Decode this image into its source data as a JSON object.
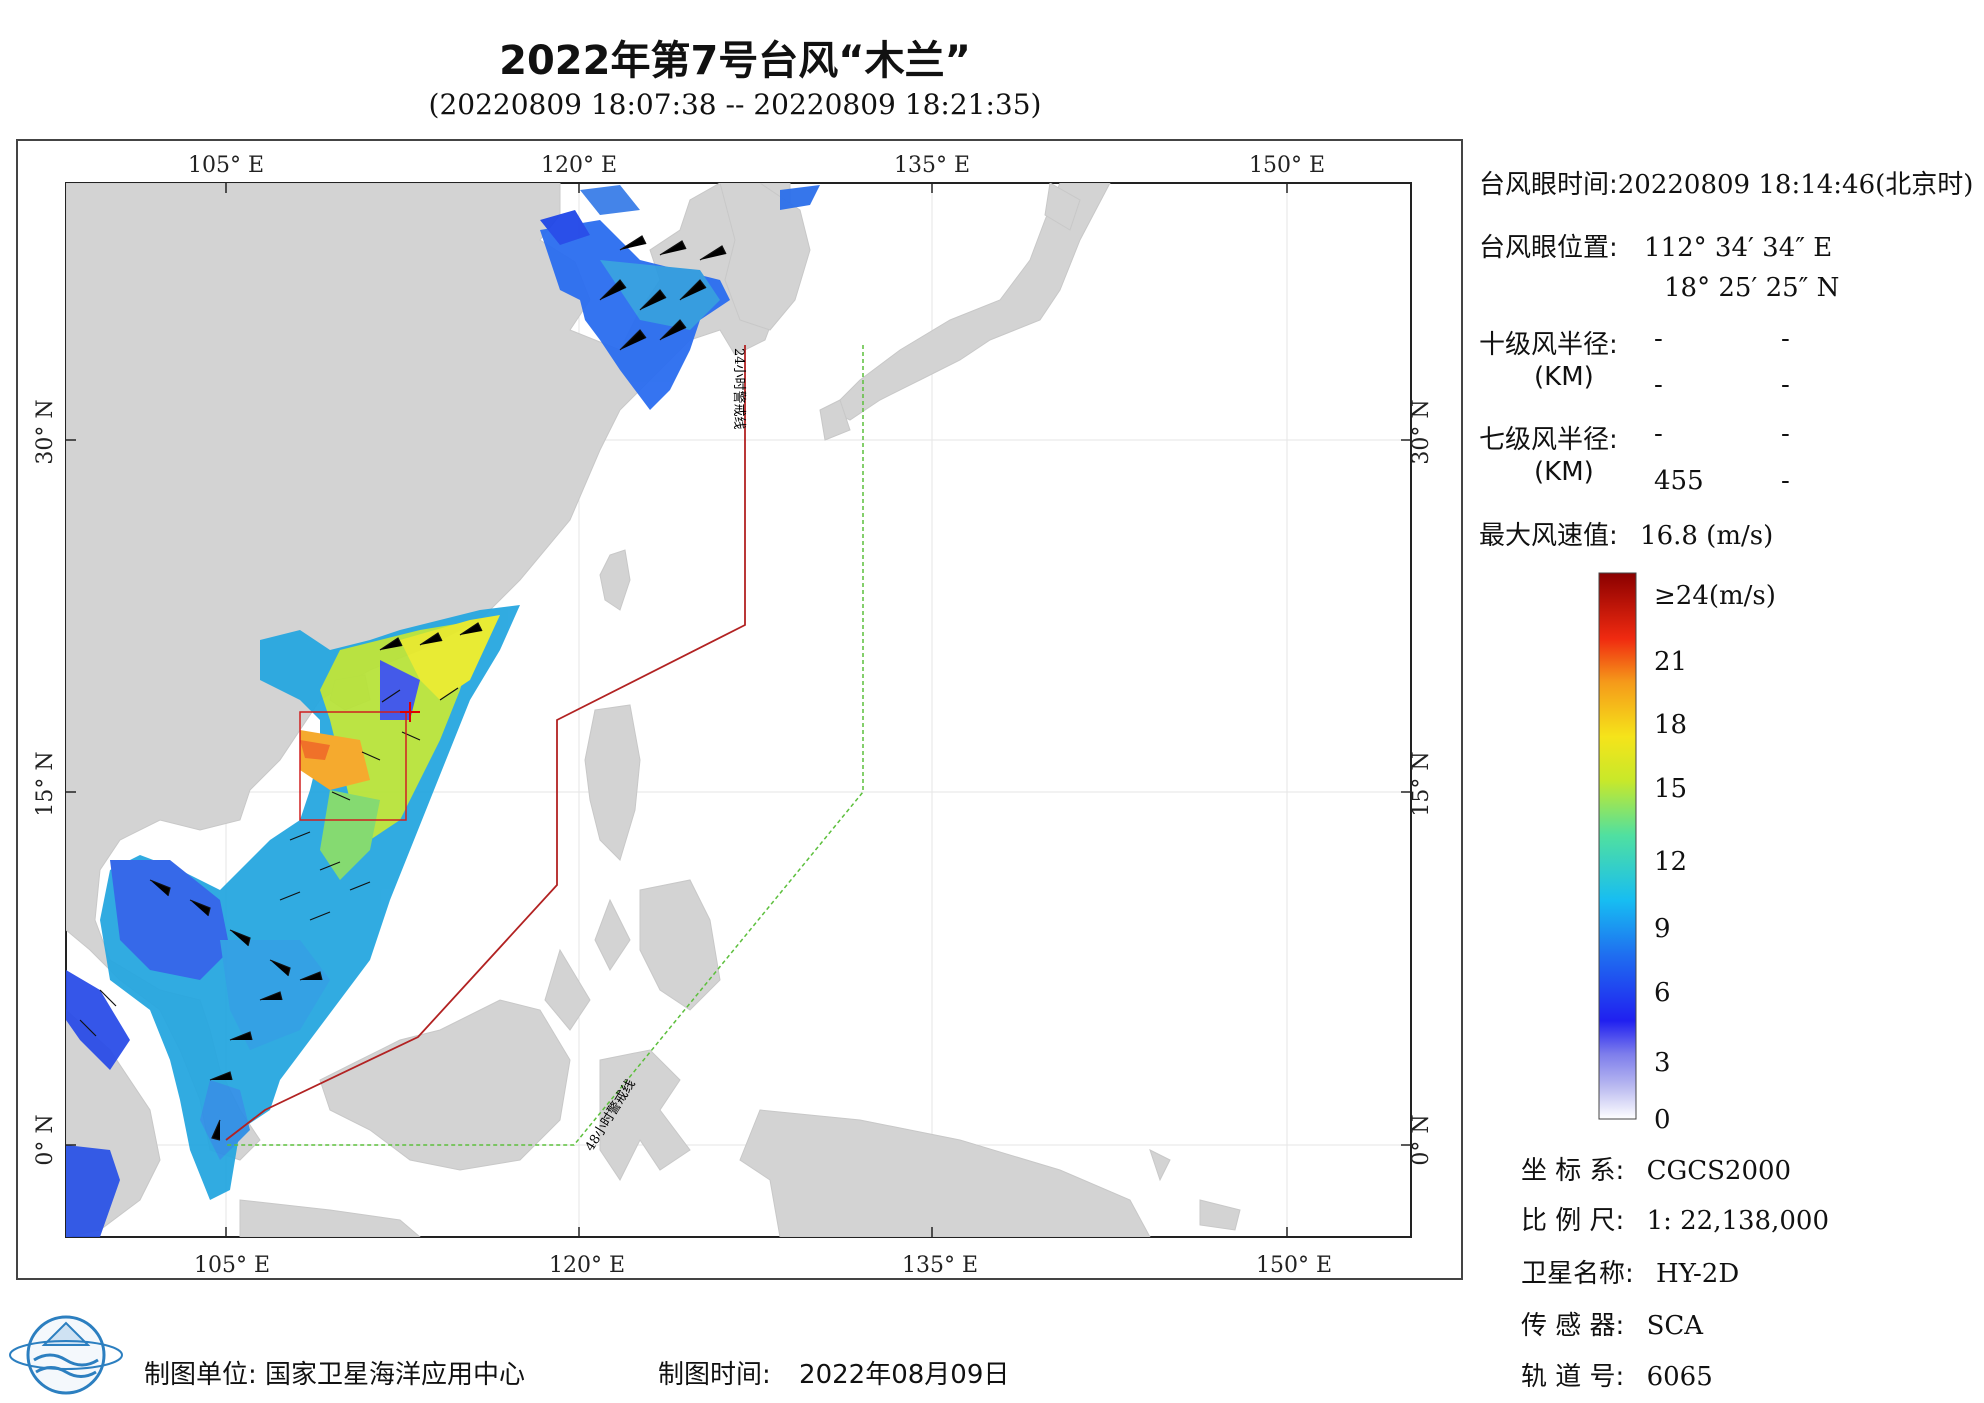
{
  "title": "2022年第7号台风“木兰”",
  "subtitle": "(20220809 18:07:38 -- 20220809 18:21:35)",
  "axes": {
    "lon_ticks": [
      "105° E",
      "120° E",
      "135° E",
      "150° E"
    ],
    "lat_ticks": [
      "30° N",
      "15° N",
      "0° N"
    ]
  },
  "warning_lines": {
    "line24": "24小时警戒线",
    "line48": "48小时警戒线",
    "color24": "#b22222",
    "color48": "#5cbf3c"
  },
  "info": {
    "eye_time_label": "台风眼时间:",
    "eye_time_value": "20220809 18:14:46(北京时)",
    "eye_pos_label": "台风眼位置:",
    "eye_lon": "112° 34′ 34″ E",
    "eye_lat": "18° 25′ 25″ N",
    "r10_label": "十级风半径:",
    "r7_label": "七级风半径:",
    "km_label": "(KM)",
    "r10_values": [
      "-",
      "-",
      "-",
      "-"
    ],
    "r7_values": [
      "-",
      "-",
      "455",
      "-"
    ],
    "max_wind_label": "最大风速值:",
    "max_wind_value": "16.8  (m/s)"
  },
  "colorbar": {
    "labels": [
      "≥24(m/s)",
      "21",
      "18",
      "15",
      "12",
      "9",
      "6",
      "3",
      "0"
    ]
  },
  "meta": {
    "crs_label": "坐 标 系:",
    "crs_value": "CGCS2000",
    "scale_label": "比 例 尺:",
    "scale_value": "1: 22,138,000",
    "sat_label": "卫星名称:",
    "sat_value": "HY-2D",
    "sensor_label": "传 感 器:",
    "sensor_value": "SCA",
    "orbit_label": "轨 道 号:",
    "orbit_value": "6065"
  },
  "footer": {
    "unit_label": "制图单位:",
    "unit_value": "国家卫星海洋应用中心",
    "time_label": "制图时间:",
    "time_value": "2022年08月09日"
  }
}
